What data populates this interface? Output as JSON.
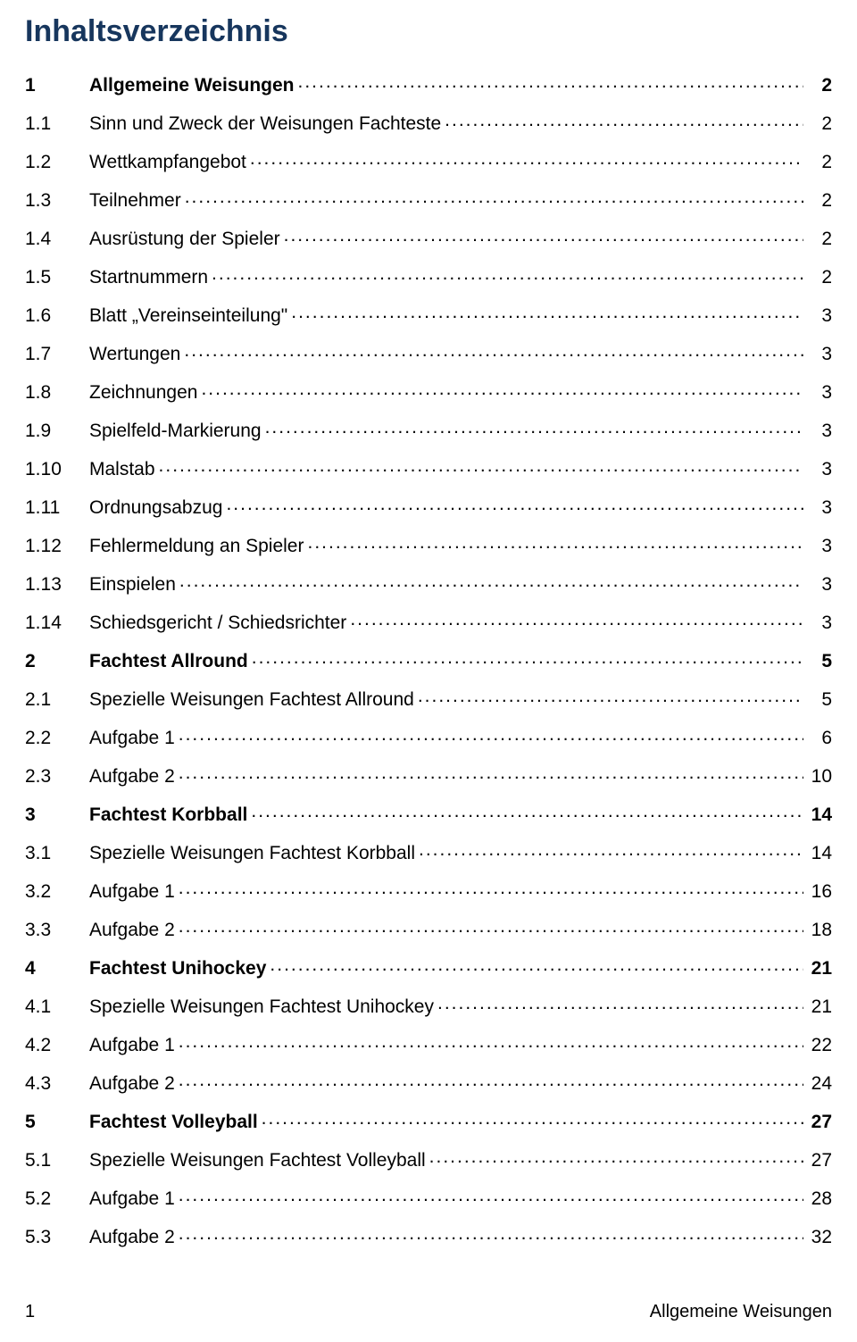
{
  "title": "Inhaltsverzeichnis",
  "footer": {
    "page_number": "1",
    "section": "Allgemeine Weisungen"
  },
  "toc": [
    {
      "num": "1",
      "text": "Allgemeine Weisungen",
      "page": "2",
      "bold": true
    },
    {
      "num": "1.1",
      "text": "Sinn und Zweck der Weisungen Fachteste",
      "page": "2",
      "bold": false
    },
    {
      "num": "1.2",
      "text": "Wettkampfangebot",
      "page": "2",
      "bold": false
    },
    {
      "num": "1.3",
      "text": "Teilnehmer",
      "page": "2",
      "bold": false
    },
    {
      "num": "1.4",
      "text": "Ausrüstung der Spieler",
      "page": "2",
      "bold": false
    },
    {
      "num": "1.5",
      "text": "Startnummern",
      "page": "2",
      "bold": false
    },
    {
      "num": "1.6",
      "text": "Blatt „Vereinseinteilung\"",
      "page": "3",
      "bold": false
    },
    {
      "num": "1.7",
      "text": "Wertungen",
      "page": "3",
      "bold": false
    },
    {
      "num": "1.8",
      "text": "Zeichnungen",
      "page": "3",
      "bold": false
    },
    {
      "num": "1.9",
      "text": "Spielfeld-Markierung",
      "page": "3",
      "bold": false
    },
    {
      "num": "1.10",
      "text": "Malstab",
      "page": "3",
      "bold": false
    },
    {
      "num": "1.11",
      "text": "Ordnungsabzug",
      "page": "3",
      "bold": false
    },
    {
      "num": "1.12",
      "text": "Fehlermeldung an Spieler",
      "page": "3",
      "bold": false
    },
    {
      "num": "1.13",
      "text": "Einspielen",
      "page": "3",
      "bold": false
    },
    {
      "num": "1.14",
      "text": "Schiedsgericht / Schiedsrichter",
      "page": "3",
      "bold": false
    },
    {
      "num": "2",
      "text": "Fachtest Allround",
      "page": "5",
      "bold": true
    },
    {
      "num": "2.1",
      "text": "Spezielle Weisungen Fachtest Allround",
      "page": "5",
      "bold": false
    },
    {
      "num": "2.2",
      "text": "Aufgabe 1",
      "page": "6",
      "bold": false
    },
    {
      "num": "2.3",
      "text": "Aufgabe 2",
      "page": "10",
      "bold": false
    },
    {
      "num": "3",
      "text": "Fachtest Korbball",
      "page": "14",
      "bold": true
    },
    {
      "num": "3.1",
      "text": "Spezielle Weisungen Fachtest Korbball",
      "page": "14",
      "bold": false
    },
    {
      "num": "3.2",
      "text": "Aufgabe 1",
      "page": "16",
      "bold": false
    },
    {
      "num": "3.3",
      "text": "Aufgabe 2",
      "page": "18",
      "bold": false
    },
    {
      "num": "4",
      "text": "Fachtest Unihockey",
      "page": "21",
      "bold": true
    },
    {
      "num": "4.1",
      "text": "Spezielle Weisungen Fachtest Unihockey",
      "page": "21",
      "bold": false
    },
    {
      "num": "4.2",
      "text": "Aufgabe 1",
      "page": "22",
      "bold": false
    },
    {
      "num": "4.3",
      "text": "Aufgabe 2",
      "page": "24",
      "bold": false
    },
    {
      "num": "5",
      "text": "Fachtest Volleyball",
      "page": "27",
      "bold": true
    },
    {
      "num": "5.1",
      "text": "Spezielle Weisungen Fachtest Volleyball",
      "page": "27",
      "bold": false
    },
    {
      "num": "5.2",
      "text": "Aufgabe 1",
      "page": "28",
      "bold": false
    },
    {
      "num": "5.3",
      "text": "Aufgabe 2",
      "page": "32",
      "bold": false
    }
  ]
}
